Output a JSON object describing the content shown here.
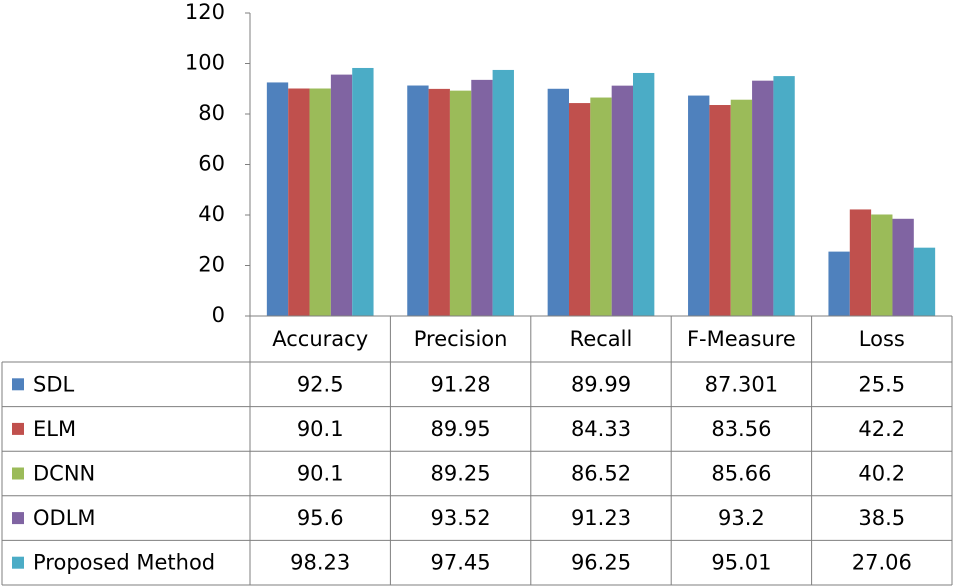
{
  "chart_data": {
    "type": "bar",
    "categories": [
      "Accuracy",
      "Precision",
      "Recall",
      "F-Measure",
      "Loss"
    ],
    "series": [
      {
        "name": "SDL",
        "color": "#4f81bd",
        "values": [
          92.5,
          91.28,
          89.99,
          87.301,
          25.5
        ]
      },
      {
        "name": "ELM",
        "color": "#c0504d",
        "values": [
          90.1,
          89.95,
          84.33,
          83.56,
          42.2
        ]
      },
      {
        "name": "DCNN",
        "color": "#9bbb59",
        "values": [
          90.1,
          89.25,
          86.52,
          85.66,
          40.2
        ]
      },
      {
        "name": "ODLM",
        "color": "#8064a2",
        "values": [
          95.6,
          93.52,
          91.23,
          93.2,
          38.5
        ]
      },
      {
        "name": "Proposed Method",
        "color": "#4bacc6",
        "values": [
          98.23,
          97.45,
          96.25,
          95.01,
          27.06
        ]
      }
    ],
    "ylim": [
      0,
      120
    ],
    "yticks": [
      0,
      20,
      40,
      60,
      80,
      100,
      120
    ],
    "grid": false
  }
}
